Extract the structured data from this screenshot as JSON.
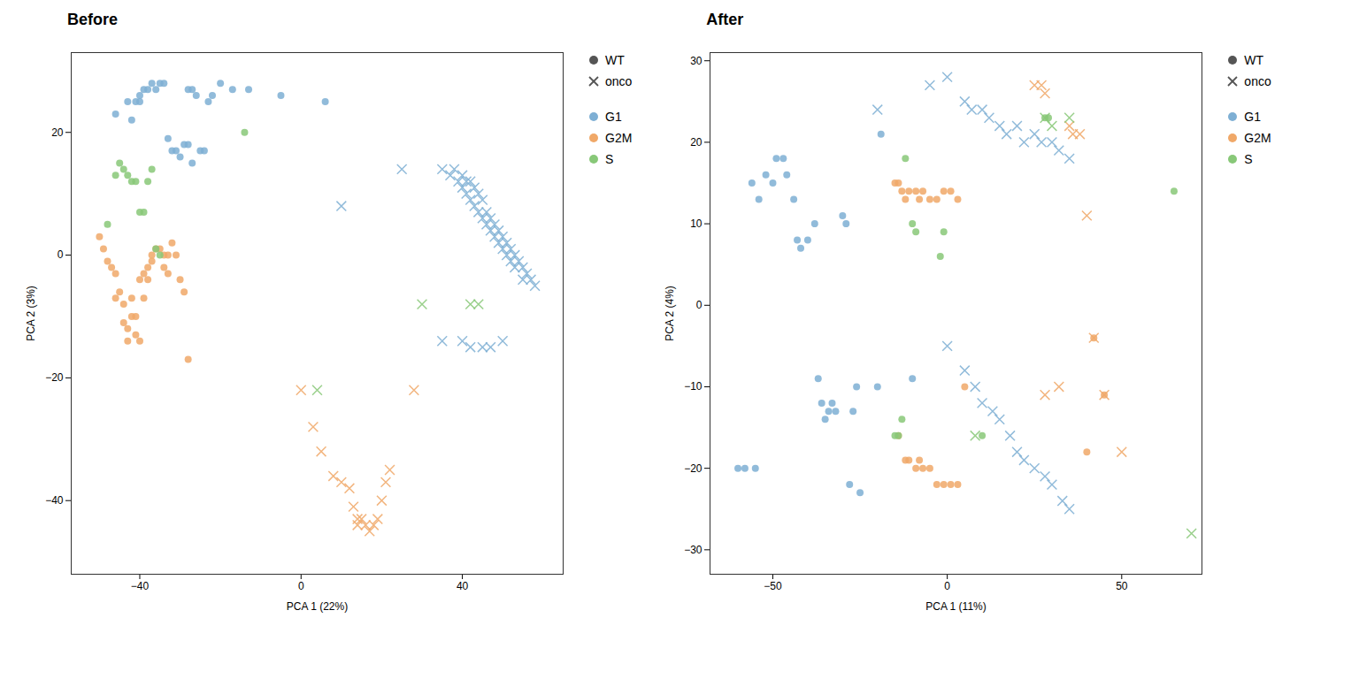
{
  "chart_data": [
    {
      "type": "scatter",
      "title": "Before",
      "xlabel": "PCA 1 (22%)",
      "ylabel": "PCA 2 (3%)",
      "xlim": [
        -57,
        65
      ],
      "ylim": [
        -52,
        33
      ],
      "xticks": [
        -40,
        0,
        40
      ],
      "yticks": [
        -40,
        -20,
        0,
        20
      ],
      "legend": "upper right",
      "series": [
        {
          "name": "G1",
          "group": "WT",
          "color": "#7eafd4",
          "marker": "circle",
          "x": [
            -46,
            -42,
            -40,
            -39,
            -38,
            -37,
            -36,
            -35,
            -34,
            -28,
            -27,
            -26,
            -23,
            -22,
            -20,
            -17,
            -13,
            -33,
            -32,
            -31,
            -30,
            -29,
            -28,
            -27,
            -25,
            -24,
            -43,
            -41,
            -40,
            -5,
            6
          ],
          "values": [
            23,
            22,
            26,
            27,
            27,
            28,
            27,
            28,
            28,
            27,
            27,
            26,
            25,
            26,
            28,
            27,
            27,
            19,
            17,
            17,
            16,
            18,
            18,
            15,
            17,
            17,
            25,
            25,
            25,
            26,
            25
          ]
        },
        {
          "name": "G2M",
          "group": "WT",
          "color": "#f0a868",
          "marker": "circle",
          "x": [
            -50,
            -49,
            -48,
            -47,
            -46,
            -46,
            -45,
            -44,
            -44,
            -43,
            -43,
            -42,
            -42,
            -41,
            -41,
            -40,
            -40,
            -39,
            -39,
            -38,
            -38,
            -37,
            -37,
            -36,
            -35,
            -34,
            -34,
            -33,
            -33,
            -32,
            -31,
            -30,
            -29,
            -28
          ],
          "values": [
            3,
            1,
            -1,
            -2,
            -3,
            -7,
            -6,
            -8,
            -11,
            -12,
            -14,
            -10,
            -7,
            -10,
            -13,
            -14,
            -4,
            -7,
            -3,
            -4,
            -2,
            -1,
            0,
            1,
            1,
            0,
            -2,
            -3,
            0,
            2,
            0,
            -4,
            -6,
            -17
          ]
        },
        {
          "name": "S",
          "group": "WT",
          "color": "#88c878",
          "marker": "circle",
          "x": [
            -48,
            -46,
            -45,
            -44,
            -43,
            -42,
            -41,
            -40,
            -39,
            -38,
            -37,
            -36,
            -35,
            -14
          ],
          "values": [
            5,
            13,
            15,
            14,
            13,
            12,
            12,
            7,
            7,
            12,
            14,
            1,
            0,
            20
          ]
        },
        {
          "name": "G1",
          "group": "onco",
          "color": "#7eafd4",
          "marker": "x",
          "x": [
            10,
            25,
            35,
            37,
            38,
            39,
            40,
            40,
            41,
            41,
            42,
            42,
            43,
            43,
            44,
            44,
            45,
            45,
            46,
            46,
            47,
            47,
            48,
            48,
            49,
            49,
            50,
            50,
            51,
            51,
            52,
            52,
            53,
            53,
            54,
            55,
            55,
            56,
            57,
            58,
            35,
            40,
            42,
            45,
            47,
            50
          ],
          "values": [
            8,
            14,
            14,
            13,
            14,
            12,
            13,
            11,
            12,
            10,
            12,
            9,
            11,
            8,
            10,
            7,
            9,
            6,
            7,
            5,
            6,
            4,
            5,
            3,
            4,
            2,
            3,
            1,
            2,
            0,
            1,
            -1,
            0,
            -2,
            -1,
            -2,
            -4,
            -3,
            -4,
            -5,
            -14,
            -14,
            -15,
            -15,
            -15,
            -14
          ]
        },
        {
          "name": "G2M",
          "group": "onco",
          "color": "#f0a868",
          "marker": "x",
          "x": [
            0,
            3,
            5,
            8,
            10,
            12,
            13,
            14,
            14,
            15,
            16,
            17,
            18,
            19,
            20,
            21,
            22,
            28
          ],
          "values": [
            -22,
            -28,
            -32,
            -36,
            -37,
            -38,
            -41,
            -43,
            -44,
            -43,
            -44,
            -45,
            -44,
            -43,
            -40,
            -37,
            -35,
            -22
          ]
        },
        {
          "name": "S",
          "group": "onco",
          "color": "#88c878",
          "marker": "x",
          "x": [
            4,
            30,
            42,
            44
          ],
          "values": [
            -22,
            -8,
            -8,
            -8
          ]
        }
      ]
    },
    {
      "type": "scatter",
      "title": "After",
      "xlabel": "PCA 1 (11%)",
      "ylabel": "PCA 2 (4%)",
      "xlim": [
        -68,
        73
      ],
      "ylim": [
        -33,
        31
      ],
      "xticks": [
        -50,
        0,
        50
      ],
      "yticks": [
        -30,
        -20,
        -10,
        0,
        10,
        20,
        30
      ],
      "legend": "upper right",
      "series": [
        {
          "name": "G1",
          "group": "WT",
          "color": "#7eafd4",
          "marker": "circle",
          "x": [
            -56,
            -54,
            -52,
            -50,
            -49,
            -47,
            -46,
            -44,
            -43,
            -42,
            -40,
            -38,
            -60,
            -58,
            -55,
            -37,
            -36,
            -35,
            -34,
            -33,
            -32,
            -30,
            -29,
            -28,
            -27,
            -26,
            -25,
            -20,
            -10,
            -19
          ],
          "values": [
            15,
            13,
            16,
            15,
            18,
            18,
            16,
            13,
            8,
            7,
            8,
            10,
            -20,
            -20,
            -20,
            -9,
            -12,
            -14,
            -13,
            -12,
            -13,
            11,
            10,
            -22,
            -13,
            -10,
            -23,
            -10,
            -9,
            21
          ]
        },
        {
          "name": "G2M",
          "group": "WT",
          "color": "#f0a868",
          "marker": "circle",
          "x": [
            -15,
            -14,
            -13,
            -12,
            -11,
            -9,
            -8,
            -7,
            -5,
            -3,
            -1,
            1,
            3,
            -14,
            -12,
            -11,
            -9,
            -8,
            -7,
            -5,
            -3,
            -1,
            1,
            3,
            5,
            40,
            42,
            45
          ],
          "values": [
            15,
            15,
            14,
            13,
            14,
            14,
            13,
            14,
            13,
            13,
            14,
            14,
            13,
            -16,
            -19,
            -19,
            -20,
            -19,
            -20,
            -20,
            -22,
            -22,
            -22,
            -22,
            -10,
            -18,
            -4,
            -11
          ]
        },
        {
          "name": "S",
          "group": "WT",
          "color": "#88c878",
          "marker": "circle",
          "x": [
            -12,
            -10,
            -9,
            -2,
            -1,
            -15,
            -14,
            -13,
            10,
            28,
            29,
            65
          ],
          "values": [
            18,
            10,
            9,
            6,
            9,
            -16,
            -16,
            -14,
            -16,
            23,
            23,
            14
          ]
        },
        {
          "name": "G1",
          "group": "onco",
          "color": "#7eafd4",
          "marker": "x",
          "x": [
            -20,
            -5,
            0,
            5,
            7,
            10,
            12,
            15,
            17,
            20,
            22,
            25,
            27,
            30,
            32,
            35,
            0,
            5,
            8,
            10,
            13,
            15,
            18,
            20,
            22,
            25,
            28,
            30,
            33,
            35
          ],
          "values": [
            24,
            27,
            28,
            25,
            24,
            24,
            23,
            22,
            21,
            22,
            20,
            21,
            20,
            20,
            19,
            18,
            -5,
            -8,
            -10,
            -12,
            -13,
            -14,
            -16,
            -18,
            -19,
            -20,
            -21,
            -22,
            -24,
            -25
          ]
        },
        {
          "name": "G2M",
          "group": "onco",
          "color": "#f0a868",
          "marker": "x",
          "x": [
            25,
            27,
            28,
            35,
            36,
            38,
            40,
            42,
            45,
            50,
            28,
            32
          ],
          "values": [
            27,
            27,
            26,
            22,
            21,
            21,
            11,
            -4,
            -11,
            -18,
            -11,
            -10
          ]
        },
        {
          "name": "S",
          "group": "onco",
          "color": "#88c878",
          "marker": "x",
          "x": [
            8,
            28,
            30,
            35,
            70
          ],
          "values": [
            -16,
            23,
            22,
            23,
            -28
          ]
        }
      ]
    }
  ]
}
